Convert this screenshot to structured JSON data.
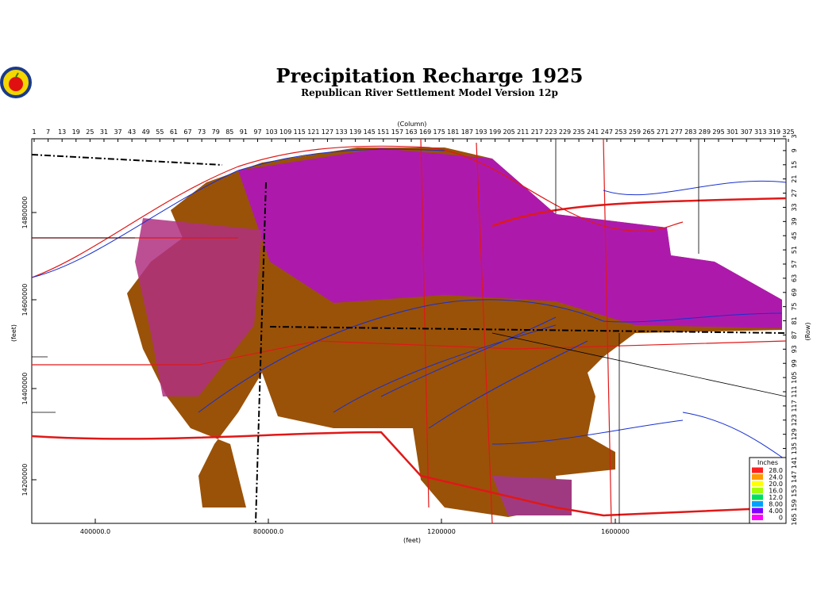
{
  "header": {
    "title": "Precipitation Recharge 1925",
    "subtitle": "Republican River Settlement Model Version 12p"
  },
  "column_axis": {
    "label": "(Column)",
    "ticks": [
      1,
      7,
      13,
      19,
      25,
      31,
      37,
      43,
      49,
      55,
      61,
      67,
      73,
      79,
      85,
      91,
      97,
      103,
      109,
      115,
      121,
      127,
      133,
      139,
      145,
      151,
      157,
      163,
      169,
      175,
      181,
      187,
      193,
      199,
      205,
      211,
      217,
      223,
      229,
      235,
      241,
      247,
      253,
      259,
      265,
      271,
      277,
      283,
      289,
      295,
      301,
      307,
      313,
      319,
      325
    ]
  },
  "row_axis": {
    "label": "(Row)",
    "ticks": [
      3,
      9,
      15,
      21,
      27,
      33,
      39,
      45,
      51,
      57,
      63,
      69,
      75,
      81,
      87,
      93,
      99,
      105,
      111,
      117,
      123,
      129,
      135,
      141,
      147,
      153,
      159,
      165
    ]
  },
  "y_axis": {
    "label": "(feet)",
    "ticks": [
      14800000,
      14600000,
      14400000,
      14200000
    ]
  },
  "x_axis": {
    "label": "(feet)",
    "ticks": [
      "400000.0",
      "800000.0",
      "1200000",
      "1600000"
    ]
  },
  "legend": {
    "title": "Inches",
    "items": [
      {
        "label": "28.0",
        "color": "#ff2020"
      },
      {
        "label": "24.0",
        "color": "#ff9a00"
      },
      {
        "label": "20.0",
        "color": "#ffff00"
      },
      {
        "label": "16.0",
        "color": "#a0ff00"
      },
      {
        "label": "12.0",
        "color": "#00e060"
      },
      {
        "label": "8.00",
        "color": "#00a0ff"
      },
      {
        "label": "4.00",
        "color": "#8000ff"
      },
      {
        "label": "0",
        "color": "#ff00ff"
      }
    ]
  }
}
